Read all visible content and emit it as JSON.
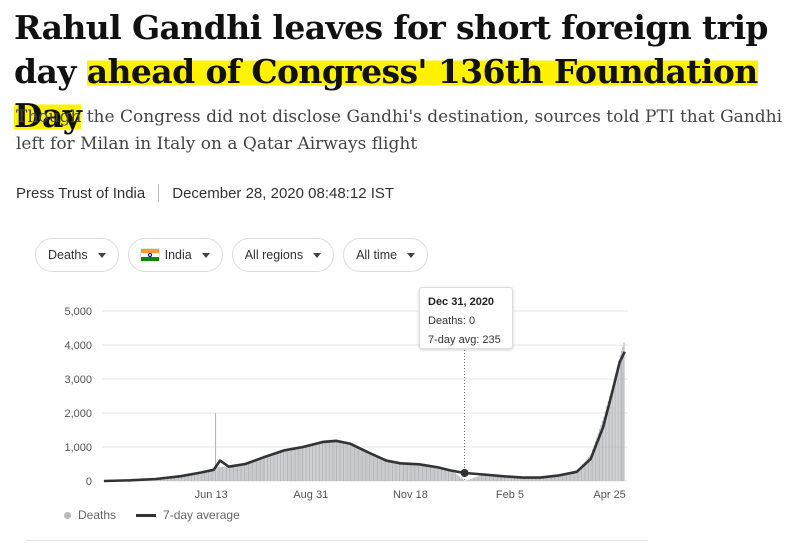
{
  "article": {
    "headline_part1": "Rahul Gandhi leaves for short foreign trip day ",
    "headline_highlight": "ahead of Congress' 136th Foundation Day",
    "subheadline": "Though the Congress did not disclose Gandhi's destination, sources told PTI that Gandhi left for Milan in Italy on a Qatar Airways flight",
    "source": "Press Trust of India",
    "timestamp": "December 28, 2020 08:48:12 IST",
    "highlight_color": "#fff200"
  },
  "filters": {
    "metric": "Deaths",
    "country": "India",
    "country_flag": "india-flag-icon",
    "region": "All regions",
    "time": "All time"
  },
  "tooltip": {
    "date": "Dec 31, 2020",
    "deaths": "Deaths: 0",
    "avg": "7-day avg: 235"
  },
  "legend": {
    "bars": "Deaths",
    "line": "7-day average"
  },
  "chart_data": {
    "type": "bar",
    "title": "",
    "xlabel": "",
    "ylabel": "",
    "ylim": [
      0,
      5000
    ],
    "y_ticks": [
      "0",
      "1,000",
      "2,000",
      "3,000",
      "4,000",
      "5,000"
    ],
    "x_ticks": [
      "Jun 13",
      "Aug 31",
      "Nov 18",
      "Feb 5",
      "Apr 25"
    ],
    "grid": true,
    "series": [
      {
        "name": "7-day average",
        "kind": "line",
        "color": "#333333",
        "points": [
          [
            "Mar 20",
            0
          ],
          [
            "Apr 10",
            20
          ],
          [
            "Apr 30",
            60
          ],
          [
            "May 20",
            140
          ],
          [
            "Jun 5",
            250
          ],
          [
            "Jun 15",
            330
          ],
          [
            "Jun 20",
            600
          ],
          [
            "Jun 27",
            420
          ],
          [
            "Jul 10",
            500
          ],
          [
            "Jul 25",
            700
          ],
          [
            "Aug 10",
            900
          ],
          [
            "Aug 25",
            1000
          ],
          [
            "Sep 10",
            1150
          ],
          [
            "Sep 20",
            1180
          ],
          [
            "Oct 1",
            1100
          ],
          [
            "Oct 15",
            850
          ],
          [
            "Oct 30",
            600
          ],
          [
            "Nov 10",
            520
          ],
          [
            "Nov 25",
            490
          ],
          [
            "Dec 10",
            400
          ],
          [
            "Dec 20",
            310
          ],
          [
            "Dec 31",
            235
          ],
          [
            "Jan 15",
            190
          ],
          [
            "Jan 30",
            140
          ],
          [
            "Feb 15",
            100
          ],
          [
            "Mar 1",
            100
          ],
          [
            "Mar 15",
            160
          ],
          [
            "Mar 30",
            270
          ],
          [
            "Apr 10",
            650
          ],
          [
            "Apr 20",
            1600
          ],
          [
            "Apr 27",
            2600
          ],
          [
            "May 3",
            3500
          ],
          [
            "May 7",
            3800
          ]
        ]
      },
      {
        "name": "Deaths",
        "kind": "bars",
        "color": "#b5b8bd",
        "points": [
          [
            "Mar 20",
            0
          ],
          [
            "Apr 10",
            30
          ],
          [
            "Apr 30",
            70
          ],
          [
            "May 20",
            150
          ],
          [
            "Jun 5",
            260
          ],
          [
            "Jun 16",
            2000
          ],
          [
            "Jun 27",
            430
          ],
          [
            "Jul 10",
            520
          ],
          [
            "Jul 25",
            760
          ],
          [
            "Aug 10",
            950
          ],
          [
            "Aug 25",
            1050
          ],
          [
            "Sep 10",
            1200
          ],
          [
            "Sep 20",
            1230
          ],
          [
            "Oct 1",
            1130
          ],
          [
            "Oct 15",
            880
          ],
          [
            "Oct 30",
            620
          ],
          [
            "Nov 10",
            550
          ],
          [
            "Nov 25",
            510
          ],
          [
            "Dec 10",
            420
          ],
          [
            "Dec 20",
            330
          ],
          [
            "Dec 31",
            0
          ],
          [
            "Jan 15",
            200
          ],
          [
            "Jan 30",
            150
          ],
          [
            "Feb 15",
            110
          ],
          [
            "Mar 1",
            110
          ],
          [
            "Mar 15",
            180
          ],
          [
            "Mar 30",
            300
          ],
          [
            "Apr 10",
            800
          ],
          [
            "Apr 20",
            1900
          ],
          [
            "Apr 27",
            2800
          ],
          [
            "May 3",
            3700
          ],
          [
            "May 7",
            4200
          ]
        ]
      }
    ],
    "colors": {
      "bars": "#b5b8bd",
      "line": "#333333",
      "grid": "#e6e6e6",
      "marker": "#333333"
    }
  }
}
